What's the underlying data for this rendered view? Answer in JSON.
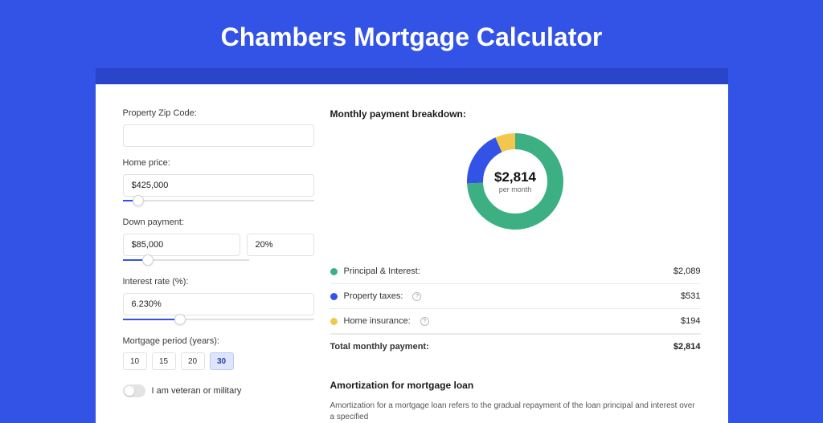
{
  "page": {
    "title": "Chambers Mortgage Calculator",
    "background_color": "#3253e6",
    "title_bar_color": "#2945c9"
  },
  "form": {
    "zip": {
      "label": "Property Zip Code:",
      "value": ""
    },
    "home_price": {
      "label": "Home price:",
      "value": "$425,000",
      "slider_pct": 8
    },
    "down_payment": {
      "label": "Down payment:",
      "amount": "$85,000",
      "pct": "20%",
      "slider_pct": 20
    },
    "interest_rate": {
      "label": "Interest rate (%):",
      "value": "6.230%",
      "slider_pct": 30
    },
    "mortgage_period": {
      "label": "Mortgage period (years):",
      "options": [
        "10",
        "15",
        "20",
        "30"
      ],
      "selected": "30"
    },
    "veteran": {
      "label": "I am veteran or military",
      "on": false
    }
  },
  "breakdown": {
    "title": "Monthly payment breakdown:",
    "center_amount": "$2,814",
    "center_sub": "per month",
    "donut": {
      "radius": 50,
      "stroke_width": 20,
      "slices": [
        {
          "color": "#3cb082",
          "pct": 74.2
        },
        {
          "color": "#3253e6",
          "pct": 18.9
        },
        {
          "color": "#f1c84c",
          "pct": 6.9
        }
      ]
    },
    "items": [
      {
        "label": "Principal & Interest:",
        "value": "$2,089",
        "color": "#3cb082",
        "info": false
      },
      {
        "label": "Property taxes:",
        "value": "$531",
        "color": "#3253e6",
        "info": true
      },
      {
        "label": "Home insurance:",
        "value": "$194",
        "color": "#f1c84c",
        "info": true
      }
    ],
    "total": {
      "label": "Total monthly payment:",
      "value": "$2,814"
    }
  },
  "amortization": {
    "title": "Amortization for mortgage loan",
    "text": "Amortization for a mortgage loan refers to the gradual repayment of the loan principal and interest over a specified"
  }
}
